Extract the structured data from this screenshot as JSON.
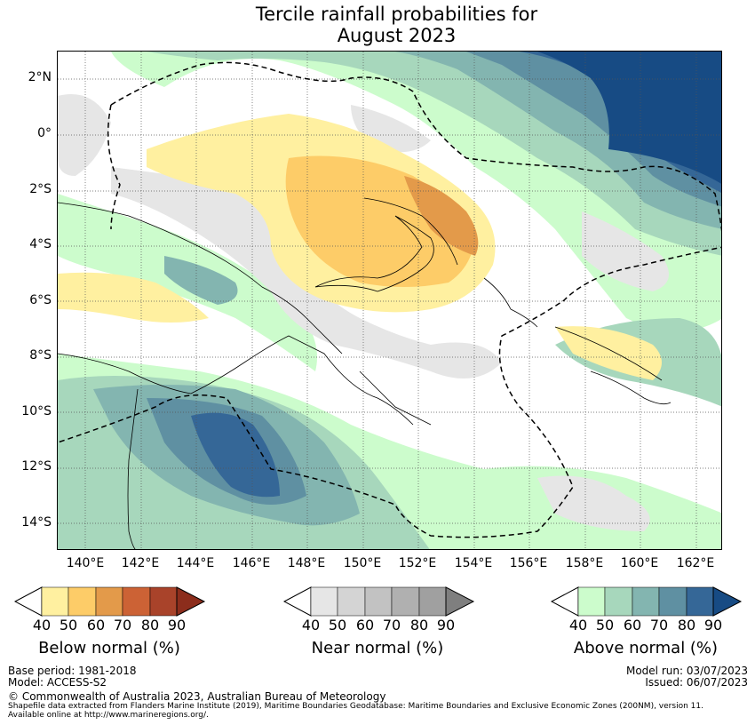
{
  "title_line1": "Tercile rainfall probabilities for",
  "title_line2": "August 2023",
  "map": {
    "lat_labels": [
      "2°N",
      "0°",
      "2°S",
      "4°S",
      "6°S",
      "8°S",
      "10°S",
      "12°S",
      "14°S"
    ],
    "lon_labels": [
      "140°E",
      "142°E",
      "144°E",
      "146°E",
      "148°E",
      "150°E",
      "152°E",
      "154°E",
      "156°E",
      "158°E",
      "160°E",
      "162°E"
    ],
    "colors": {
      "below": [
        "#fff0a0",
        "#fdcc68",
        "#e39a4a",
        "#cc6235",
        "#a9432a",
        "#8c2d1c"
      ],
      "near": [
        "#e6e6e6",
        "#d4d4d4",
        "#c2c2c2",
        "#b0b0b0",
        "#a0a0a0",
        "#7f7f7f"
      ],
      "above": [
        "#ccfccc",
        "#a7d7bc",
        "#83b5b0",
        "#5f90a2",
        "#356797",
        "#174b84"
      ]
    }
  },
  "colorbars": {
    "ticks": [
      "40",
      "50",
      "60",
      "70",
      "80",
      "90"
    ],
    "below_label": "Below normal (%)",
    "near_label": "Near normal (%)",
    "above_label": "Above normal (%)"
  },
  "footer": {
    "base_period": "Base period: 1981-2018",
    "model": "Model: ACCESS-S2",
    "model_run": "Model run: 03/07/2023",
    "issued": "Issued: 06/07/2023",
    "copyright": "© Commonwealth of Australia 2023, Australian Bureau of Meteorology",
    "shapefile_1": "Shapefile data extracted from Flanders Marine Institute (2019), Maritime Boundaries Geodatabase: Maritime Boundaries and Exclusive Economic Zones (200NM), version 11.",
    "shapefile_2": "Available online at http://www.marineregions.org/."
  }
}
